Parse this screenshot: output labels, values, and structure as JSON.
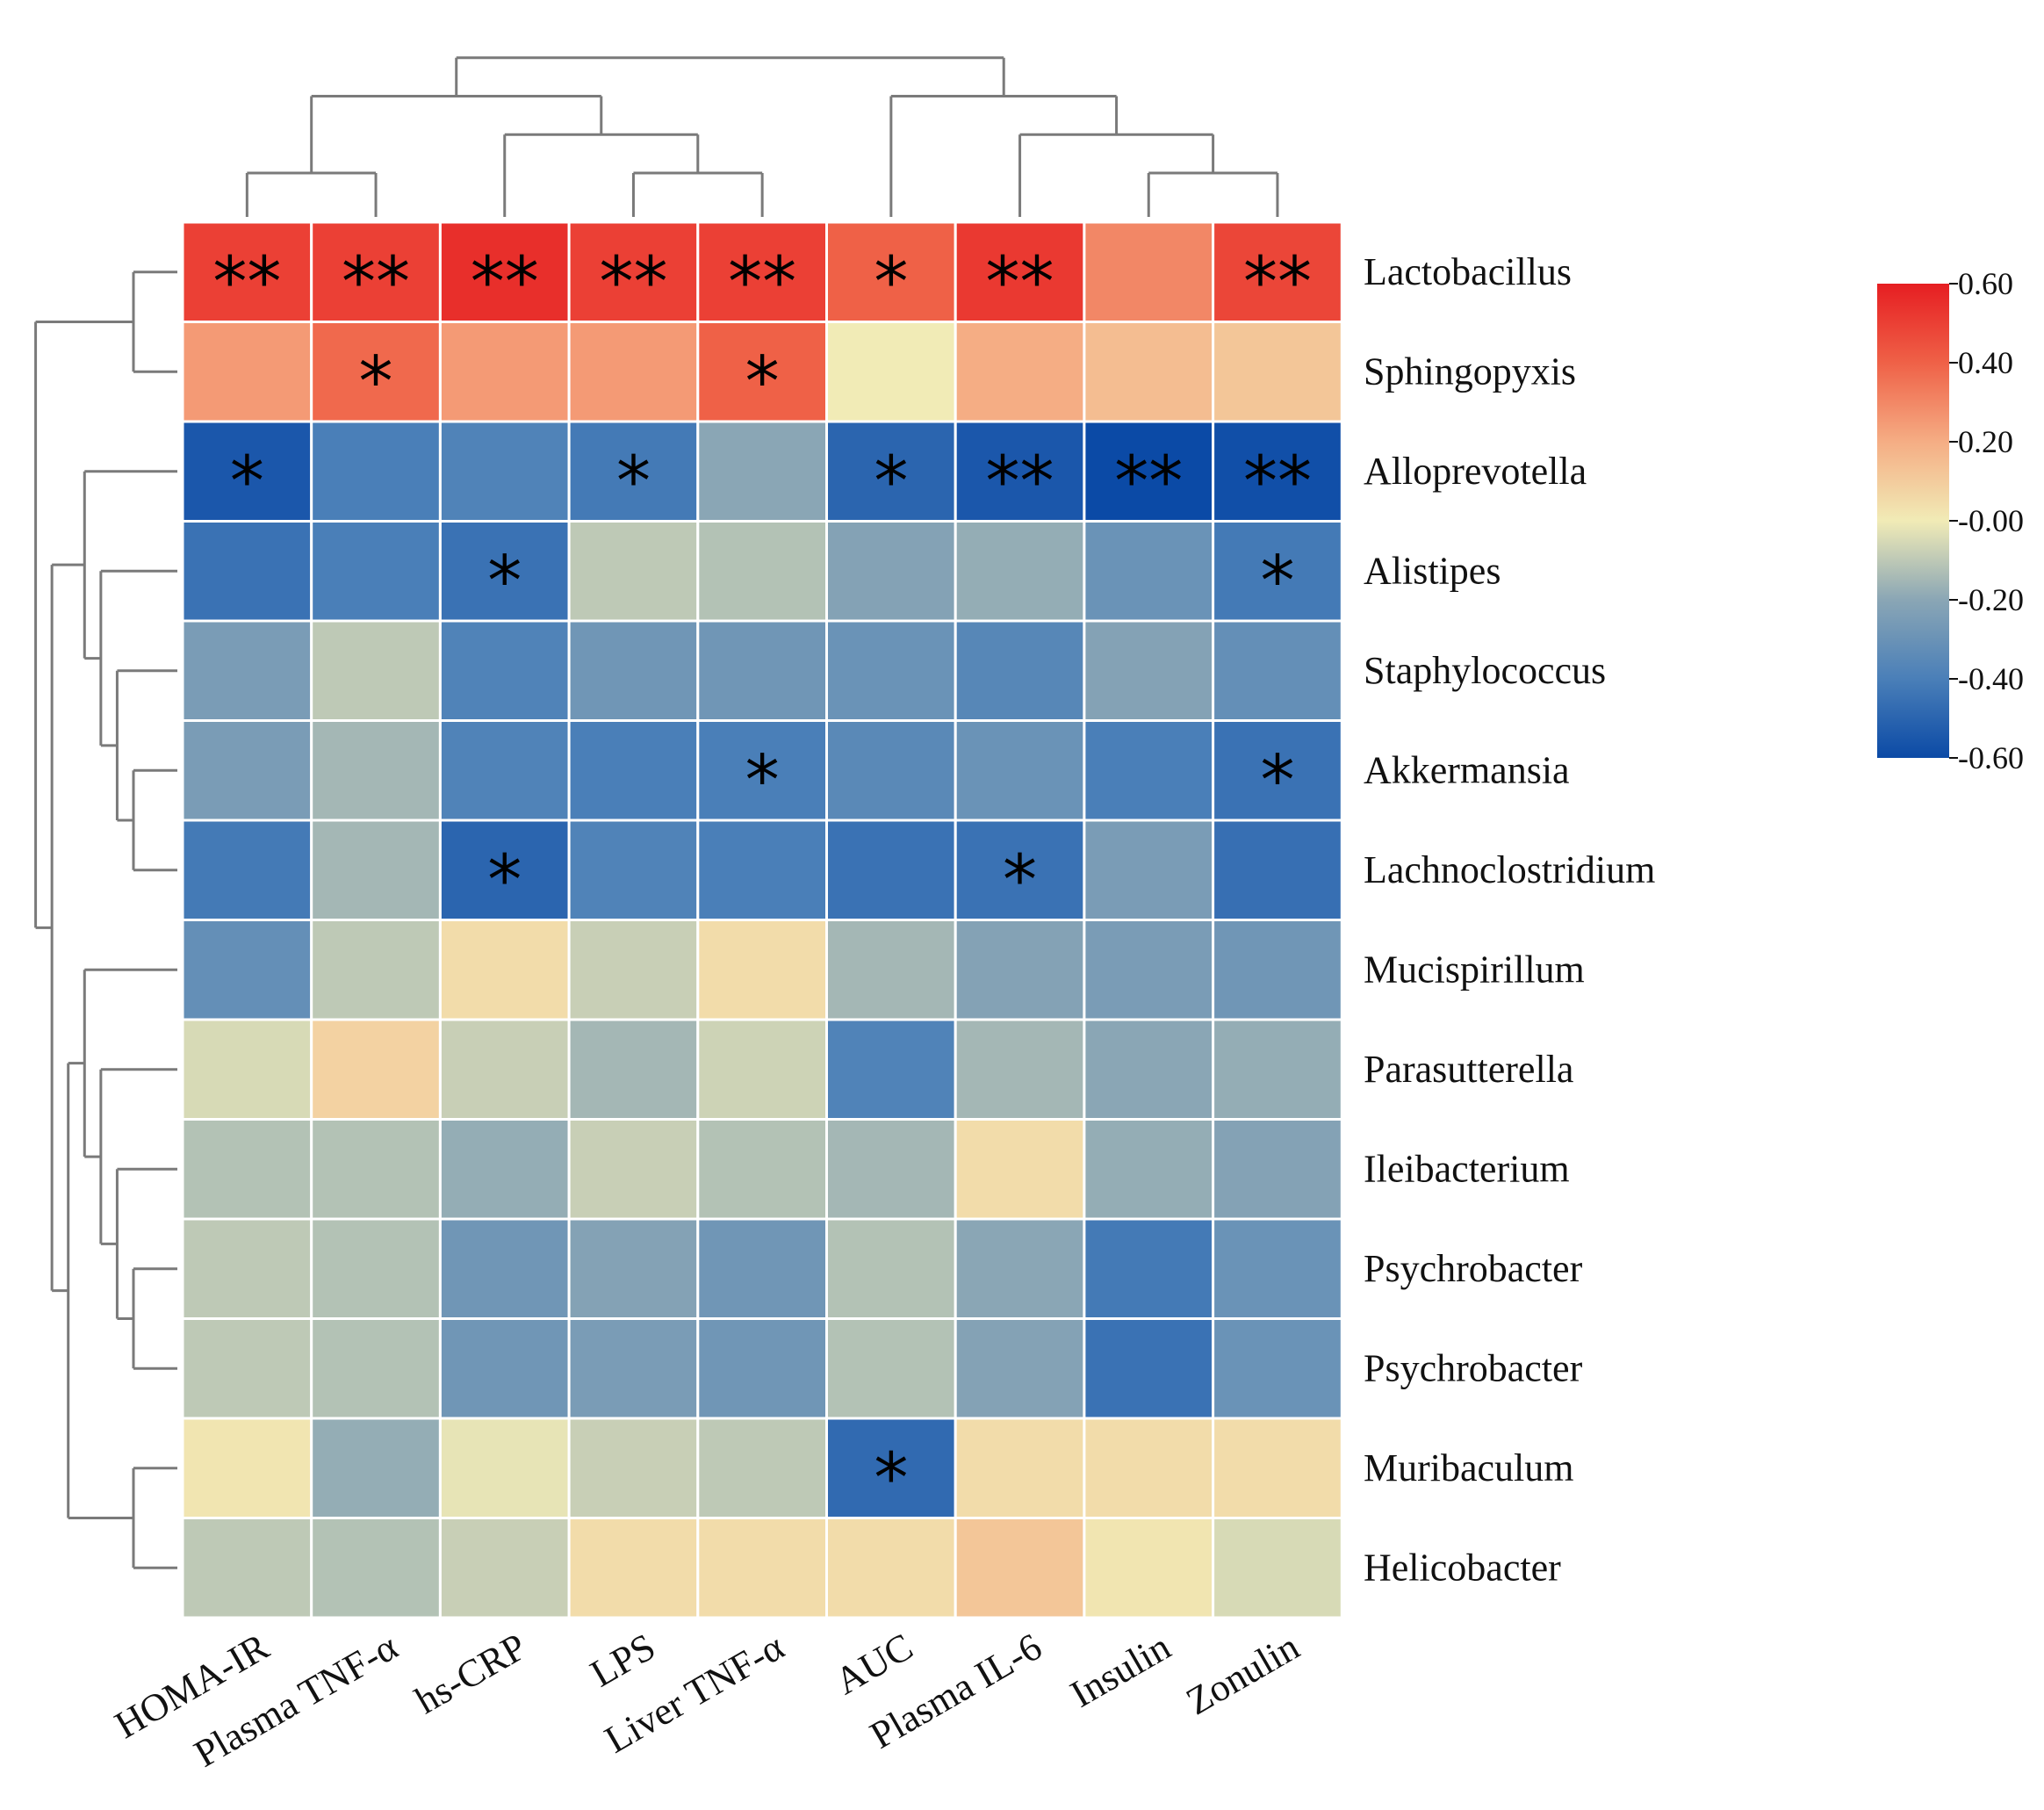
{
  "chart_data": {
    "type": "heatmap",
    "title": "",
    "columns": [
      "HOMA-IR",
      "Plasma TNF-α",
      "hs-CRP",
      "LPS",
      "Liver TNF-α",
      "AUC",
      "Plasma IL-6",
      "Insulin",
      "Zonulin"
    ],
    "rows": [
      "Lactobacillus",
      "Sphingopyxis",
      "Alloprevotella",
      "Alistipes",
      "Staphylococcus",
      "Akkermansia",
      "Lachnoclostridium",
      "Mucispirillum",
      "Parasutterella",
      "Ileibacterium",
      "Psychrobacter",
      "Psychrobacter",
      "Muribaculum",
      "Helicobacter"
    ],
    "values": [
      [
        0.5,
        0.5,
        0.55,
        0.5,
        0.5,
        0.4,
        0.52,
        0.3,
        0.48
      ],
      [
        0.25,
        0.38,
        0.25,
        0.25,
        0.4,
        0.0,
        0.2,
        0.15,
        0.12
      ],
      [
        -0.55,
        -0.4,
        -0.38,
        -0.42,
        -0.2,
        -0.5,
        -0.55,
        -0.6,
        -0.58
      ],
      [
        -0.45,
        -0.4,
        -0.45,
        -0.1,
        -0.12,
        -0.22,
        -0.18,
        -0.3,
        -0.42
      ],
      [
        -0.25,
        -0.1,
        -0.38,
        -0.28,
        -0.28,
        -0.3,
        -0.36,
        -0.22,
        -0.32
      ],
      [
        -0.25,
        -0.15,
        -0.38,
        -0.4,
        -0.4,
        -0.35,
        -0.3,
        -0.4,
        -0.45
      ],
      [
        -0.42,
        -0.15,
        -0.5,
        -0.38,
        -0.4,
        -0.45,
        -0.45,
        -0.25,
        -0.46
      ],
      [
        -0.32,
        -0.1,
        0.05,
        -0.08,
        0.05,
        -0.15,
        -0.22,
        -0.25,
        -0.28
      ],
      [
        -0.05,
        0.08,
        -0.08,
        -0.15,
        -0.07,
        -0.38,
        -0.15,
        -0.2,
        -0.18
      ],
      [
        -0.12,
        -0.12,
        -0.18,
        -0.08,
        -0.12,
        -0.15,
        0.05,
        -0.18,
        -0.22
      ],
      [
        -0.1,
        -0.12,
        -0.28,
        -0.22,
        -0.28,
        -0.12,
        -0.2,
        -0.42,
        -0.3
      ],
      [
        -0.1,
        -0.12,
        -0.28,
        -0.25,
        -0.28,
        -0.12,
        -0.22,
        -0.45,
        -0.3
      ],
      [
        0.02,
        -0.18,
        -0.02,
        -0.08,
        -0.1,
        -0.48,
        0.05,
        0.05,
        0.05
      ],
      [
        -0.1,
        -0.12,
        -0.08,
        0.05,
        0.05,
        0.05,
        0.12,
        0.02,
        -0.05
      ]
    ],
    "significance": [
      [
        "**",
        "**",
        "**",
        "**",
        "**",
        "*",
        "**",
        "",
        "**"
      ],
      [
        "",
        "*",
        "",
        "",
        "*",
        "",
        "",
        "",
        ""
      ],
      [
        "*",
        "",
        "",
        "*",
        "",
        "*",
        "**",
        "**",
        "**"
      ],
      [
        "",
        "",
        "*",
        "",
        "",
        "",
        "",
        "",
        "*"
      ],
      [
        "",
        "",
        "",
        "",
        "",
        "",
        "",
        "",
        ""
      ],
      [
        "",
        "",
        "",
        "",
        "*",
        "",
        "",
        "",
        "*"
      ],
      [
        "",
        "",
        "*",
        "",
        "",
        "",
        "*",
        "",
        ""
      ],
      [
        "",
        "",
        "",
        "",
        "",
        "",
        "",
        "",
        ""
      ],
      [
        "",
        "",
        "",
        "",
        "",
        "",
        "",
        "",
        ""
      ],
      [
        "",
        "",
        "",
        "",
        "",
        "",
        "",
        "",
        ""
      ],
      [
        "",
        "",
        "",
        "",
        "",
        "",
        "",
        "",
        ""
      ],
      [
        "",
        "",
        "",
        "",
        "",
        "",
        "",
        "",
        ""
      ],
      [
        "",
        "",
        "",
        "",
        "",
        "*",
        "",
        "",
        ""
      ],
      [
        "",
        "",
        "",
        "",
        "",
        "",
        "",
        "",
        ""
      ]
    ],
    "color_scale": {
      "min": -0.6,
      "max": 0.6,
      "ticks": [
        "0.60",
        "0.40",
        "0.20",
        "-0.00",
        "-0.20",
        "-0.40",
        "-0.60"
      ],
      "colors": {
        "-0.6": "#0b4aa6",
        "-0.4": "#4a7fb8",
        "-0.2": "#8aa6b5",
        "0.0": "#f1ebb6",
        "0.2": "#f5ad84",
        "0.4": "#ef6147",
        "0.6": "#e61e22"
      }
    },
    "column_dendrogram": "((HOMA-IR,Plasma TNF-α),(hs-CRP,(LPS,Liver TNF-α))),(AUC,(Plasma IL-6,(Insulin,Zonulin)))",
    "row_dendrogram": "(Lactobacillus,Sphingopyxis),((Alloprevotella,(Alistipes,(Staphylococcus,(Akkermansia,Lachnoclostridium)))),((Mucispirillum,(Parasutterella,(Ileibacterium,(Psychrobacter,Psychrobacter)))),(Muribaculum,Helicobacter)))",
    "legend_position": "right"
  }
}
